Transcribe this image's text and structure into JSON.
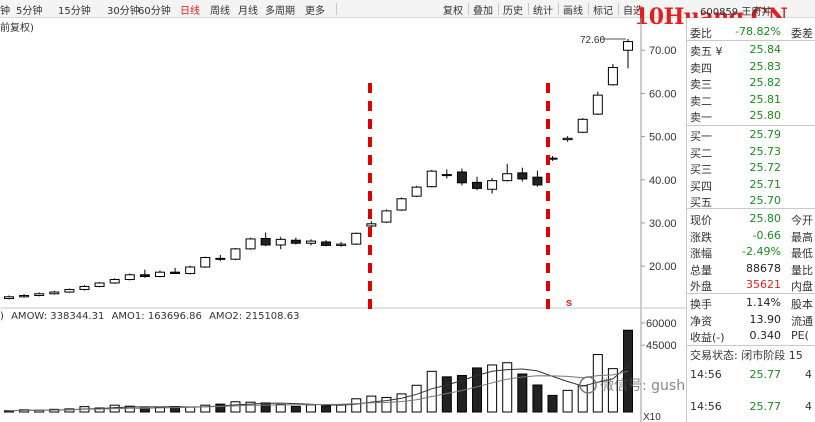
{
  "toolbar": {
    "periods": [
      "钟",
      "5分钟",
      "15分钟",
      "30分钟",
      "60分钟",
      "日线",
      "周线",
      "月线",
      "多周期",
      "更多"
    ],
    "active_period": "日线",
    "tools": [
      "复权",
      "叠加",
      "历史",
      "统计",
      "画线",
      "标记",
      "自选"
    ]
  },
  "watermark": "10Huang.CN",
  "stock_code": "600859 王府井",
  "subtitle": "前复权)",
  "price_axis": {
    "ticks": [
      "70.00",
      "60.00",
      "50.00",
      "40.00",
      "30.00",
      "20.00"
    ],
    "high_label": "72.60"
  },
  "volume_axis": {
    "ticks": [
      "60000",
      "45000"
    ],
    "unit": "X10"
  },
  "volume_indicator": {
    "prefix": ")",
    "amow_label": "AMOW:",
    "amow_value": "338344.31",
    "amo1_label": "AMO1:",
    "amo1_value": "163696.86",
    "amo2_label": "AMO2:",
    "amo2_value": "215108.63"
  },
  "marker_s": "s",
  "weixin_watermark": "微信号: gushiluoji",
  "side_panel": {
    "header": {
      "label": "委比",
      "value": "-78.82%",
      "extra": "委差"
    },
    "asks": [
      {
        "label": "卖五 ¥",
        "price": "25.84"
      },
      {
        "label": "卖四",
        "price": "25.83"
      },
      {
        "label": "卖三",
        "price": "25.82"
      },
      {
        "label": "卖二",
        "price": "25.81"
      },
      {
        "label": "卖一",
        "price": "25.80"
      }
    ],
    "bids": [
      {
        "label": "买一",
        "price": "25.79"
      },
      {
        "label": "买二",
        "price": "25.73"
      },
      {
        "label": "买三",
        "price": "25.72"
      },
      {
        "label": "买四",
        "price": "25.71"
      },
      {
        "label": "买五",
        "price": "25.70"
      }
    ],
    "stats": [
      {
        "label": "现价",
        "value": "25.80",
        "extra": "今开"
      },
      {
        "label": "涨跌",
        "value": "-0.66",
        "extra": "最高"
      },
      {
        "label": "涨幅",
        "value": "-2.49%",
        "extra": "最低"
      },
      {
        "label": "总量",
        "value": "88678",
        "extra": "量比"
      },
      {
        "label": "外盘",
        "value": "35621",
        "extra": "内盘"
      }
    ],
    "stats2": [
      {
        "label": "换手",
        "value": "1.14%",
        "extra": "股本"
      },
      {
        "label": "净资",
        "value": "13.90",
        "extra": "流通"
      },
      {
        "label": "收益(-)",
        "value": "0.340",
        "extra": "PE("
      }
    ],
    "trade_status": "交易状态: 闭市阶段 15",
    "ticks": [
      {
        "time": "14:56",
        "price": "25.77",
        "vol": "4"
      },
      {
        "time": "14:56",
        "price": "25.77",
        "vol": "4"
      }
    ]
  },
  "chart_data": {
    "type": "candlestick",
    "y_axis_ticks": [
      20,
      30,
      40,
      50,
      60,
      70
    ],
    "ylim": [
      11,
      77
    ],
    "annotation_high": 72.6,
    "markers": [
      "vertical red dashed line",
      "vertical red dashed line"
    ],
    "candles": [
      {
        "o": 12.5,
        "h": 13.2,
        "l": 12.3,
        "c": 12.9
      },
      {
        "o": 12.9,
        "h": 13.5,
        "l": 12.7,
        "c": 13.2
      },
      {
        "o": 13.2,
        "h": 13.9,
        "l": 13.0,
        "c": 13.6
      },
      {
        "o": 13.6,
        "h": 14.3,
        "l": 13.4,
        "c": 14.0
      },
      {
        "o": 14.0,
        "h": 14.8,
        "l": 13.8,
        "c": 14.6
      },
      {
        "o": 14.6,
        "h": 15.6,
        "l": 14.4,
        "c": 15.3
      },
      {
        "o": 15.3,
        "h": 16.3,
        "l": 15.1,
        "c": 16.1
      },
      {
        "o": 16.1,
        "h": 17.2,
        "l": 15.9,
        "c": 16.9
      },
      {
        "o": 16.9,
        "h": 18.3,
        "l": 16.7,
        "c": 18.0
      },
      {
        "o": 18.0,
        "h": 19.2,
        "l": 17.3,
        "c": 17.6
      },
      {
        "o": 17.6,
        "h": 19.0,
        "l": 17.4,
        "c": 18.6
      },
      {
        "o": 18.6,
        "h": 19.6,
        "l": 18.2,
        "c": 18.3
      },
      {
        "o": 18.3,
        "h": 20.1,
        "l": 18.1,
        "c": 19.8
      },
      {
        "o": 19.8,
        "h": 22.2,
        "l": 19.6,
        "c": 22.0
      },
      {
        "o": 21.8,
        "h": 22.6,
        "l": 21.2,
        "c": 21.6
      },
      {
        "o": 21.6,
        "h": 24.2,
        "l": 21.4,
        "c": 24.0
      },
      {
        "o": 24.0,
        "h": 26.6,
        "l": 23.8,
        "c": 26.3
      },
      {
        "o": 26.4,
        "h": 27.8,
        "l": 24.6,
        "c": 24.9
      },
      {
        "o": 24.9,
        "h": 26.8,
        "l": 23.9,
        "c": 26.2
      },
      {
        "o": 26.0,
        "h": 26.6,
        "l": 25.0,
        "c": 25.3
      },
      {
        "o": 25.3,
        "h": 26.2,
        "l": 24.8,
        "c": 25.8
      },
      {
        "o": 25.6,
        "h": 26.0,
        "l": 24.6,
        "c": 24.8
      },
      {
        "o": 24.8,
        "h": 25.6,
        "l": 24.5,
        "c": 25.1
      },
      {
        "o": 25.1,
        "h": 27.8,
        "l": 24.9,
        "c": 27.6
      },
      {
        "o": 29.3,
        "h": 30.4,
        "l": 28.3,
        "c": 29.8
      },
      {
        "o": 30.2,
        "h": 33.1,
        "l": 30.0,
        "c": 32.8
      },
      {
        "o": 33.0,
        "h": 35.9,
        "l": 32.8,
        "c": 35.6
      },
      {
        "o": 36.2,
        "h": 38.6,
        "l": 36.0,
        "c": 38.3
      },
      {
        "o": 38.4,
        "h": 42.3,
        "l": 38.2,
        "c": 42.0
      },
      {
        "o": 41.0,
        "h": 42.4,
        "l": 40.3,
        "c": 41.2
      },
      {
        "o": 41.8,
        "h": 42.6,
        "l": 38.7,
        "c": 39.3
      },
      {
        "o": 39.4,
        "h": 40.7,
        "l": 37.6,
        "c": 38.0
      },
      {
        "o": 37.8,
        "h": 40.4,
        "l": 36.8,
        "c": 39.8
      },
      {
        "o": 39.8,
        "h": 43.7,
        "l": 39.6,
        "c": 41.4
      },
      {
        "o": 41.6,
        "h": 42.8,
        "l": 39.6,
        "c": 40.2
      },
      {
        "o": 40.6,
        "h": 42.1,
        "l": 38.4,
        "c": 38.8
      },
      {
        "o": 45.0,
        "h": 45.5,
        "l": 44.4,
        "c": 44.8
      },
      {
        "o": 49.3,
        "h": 50.1,
        "l": 48.8,
        "c": 49.6
      },
      {
        "o": 51.0,
        "h": 54.3,
        "l": 50.8,
        "c": 54.0
      },
      {
        "o": 55.2,
        "h": 60.4,
        "l": 55.0,
        "c": 59.6
      },
      {
        "o": 62.0,
        "h": 66.8,
        "l": 61.8,
        "c": 66.0
      },
      {
        "o": 70.0,
        "h": 72.6,
        "l": 65.8,
        "c": 72.0
      }
    ],
    "volume": {
      "ylim": [
        0,
        62000
      ],
      "ticks": [
        45000,
        60000
      ],
      "values": [
        800,
        1500,
        1200,
        1800,
        2100,
        3600,
        2700,
        4600,
        3900,
        2700,
        3300,
        3700,
        3300,
        4600,
        5300,
        6900,
        6600,
        6100,
        5000,
        3800,
        4800,
        4200,
        4900,
        8900,
        10700,
        9800,
        12200,
        18000,
        27400,
        23700,
        24600,
        29700,
        31700,
        33200,
        25600,
        18200,
        11200,
        14600,
        17700,
        38700,
        29200,
        55100
      ],
      "down": [
        false,
        false,
        false,
        false,
        false,
        false,
        false,
        false,
        false,
        true,
        false,
        true,
        false,
        false,
        true,
        false,
        false,
        true,
        false,
        true,
        false,
        true,
        false,
        false,
        false,
        false,
        false,
        false,
        false,
        true,
        true,
        true,
        false,
        false,
        true,
        true,
        true,
        false,
        false,
        false,
        false,
        true
      ]
    }
  }
}
